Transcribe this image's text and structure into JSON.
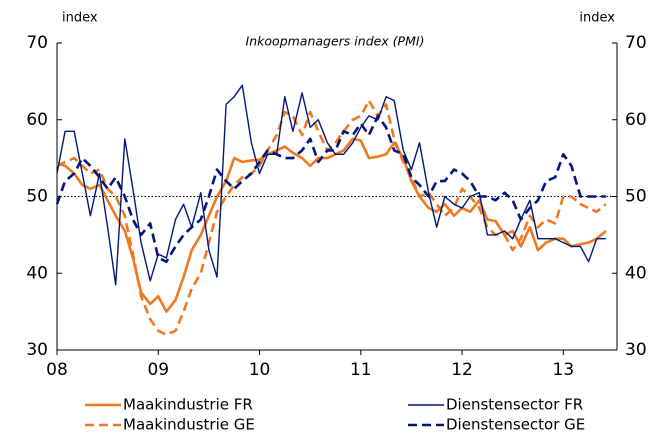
{
  "chart_data": {
    "type": "line",
    "title": "Inkoopmanagers index (PMI)",
    "ylabel": "index",
    "y2label": "index",
    "x": [
      2008.0,
      2008.08,
      2008.17,
      2008.25,
      2008.33,
      2008.42,
      2008.5,
      2008.58,
      2008.67,
      2008.75,
      2008.83,
      2008.92,
      2009.0,
      2009.08,
      2009.17,
      2009.25,
      2009.33,
      2009.42,
      2009.5,
      2009.58,
      2009.67,
      2009.75,
      2009.83,
      2009.92,
      2010.0,
      2010.08,
      2010.17,
      2010.25,
      2010.33,
      2010.42,
      2010.5,
      2010.58,
      2010.67,
      2010.75,
      2010.83,
      2010.92,
      2011.0,
      2011.08,
      2011.17,
      2011.25,
      2011.33,
      2011.42,
      2011.5,
      2011.58,
      2011.67,
      2011.75,
      2011.83,
      2011.92,
      2012.0,
      2012.08,
      2012.17,
      2012.25,
      2012.33,
      2012.42,
      2012.5,
      2012.58,
      2012.67,
      2012.75,
      2012.83,
      2012.92,
      2013.0,
      2013.08,
      2013.17,
      2013.25,
      2013.33,
      2013.42
    ],
    "series": [
      {
        "name": "Maakindustrie FR",
        "color": "#f07820",
        "style": "solid",
        "linewidth": 2.6,
        "values": [
          54.3,
          54,
          53,
          51.5,
          51,
          51.5,
          49.5,
          47.5,
          45.5,
          42,
          37.5,
          36,
          37,
          35,
          36.5,
          39.5,
          43,
          45,
          47.5,
          50,
          52,
          55,
          54.5,
          54.7,
          54.8,
          55.5,
          56,
          56.5,
          55.7,
          55,
          54,
          55,
          55,
          55.5,
          56,
          57.5,
          57.3,
          55,
          55.2,
          55.5,
          57,
          55,
          52,
          50,
          48.5,
          48,
          49,
          47.5,
          48.5,
          48,
          49.5,
          47,
          46.8,
          45,
          45.5,
          43.5,
          46,
          43,
          44,
          44.5,
          44.5,
          43.5,
          43.8,
          44,
          44.5,
          45.5
        ]
      },
      {
        "name": "Maakindustrie GE",
        "color": "#f07820",
        "style": "dashed",
        "linewidth": 2.6,
        "values": [
          54,
          54.5,
          55,
          54,
          53,
          53.5,
          51,
          50,
          47.5,
          42.5,
          37,
          34,
          32.5,
          32,
          32.5,
          35,
          38,
          40,
          44,
          48,
          50,
          51.5,
          52.5,
          53,
          54,
          56,
          58,
          61,
          60.5,
          58,
          61,
          58.5,
          56,
          57,
          58.5,
          60,
          60.5,
          62.5,
          60.5,
          62,
          57.5,
          54.5,
          52.5,
          50,
          50.5,
          49,
          47.5,
          48.5,
          51,
          50,
          48.5,
          46,
          45,
          45,
          43,
          44.5,
          47.5,
          46,
          47,
          46.5,
          50,
          50,
          49,
          48.5,
          48,
          49
        ]
      },
      {
        "name": "Dienstensector FR",
        "color": "#00167a",
        "style": "solid",
        "linewidth": 1.4,
        "values": [
          53,
          58.5,
          58.5,
          53,
          47.5,
          53,
          46,
          38.5,
          57.5,
          51,
          44,
          39,
          42.5,
          42,
          47,
          49,
          46,
          50.5,
          43,
          39.5,
          62,
          63,
          64.5,
          57,
          53,
          55.5,
          55.5,
          63,
          58.5,
          63.5,
          59,
          60,
          57,
          55.5,
          55.5,
          57,
          59,
          60.5,
          60,
          63,
          62.5,
          56,
          53.5,
          57,
          50.5,
          46,
          50,
          49,
          48.5,
          50,
          50.5,
          45,
          45,
          45.5,
          44.5,
          47,
          49.5,
          44.5,
          44.5,
          44.5,
          44,
          43.5,
          43.5,
          41.5,
          44.5,
          44.5
        ]
      },
      {
        "name": "Dienstensector GE",
        "color": "#00167a",
        "style": "dashed",
        "linewidth": 2.6,
        "values": [
          49,
          52,
          53,
          55,
          54,
          52.5,
          51,
          52.5,
          50,
          47,
          45,
          46.5,
          42,
          41.5,
          43.5,
          45,
          46,
          47,
          50,
          53.5,
          52,
          51,
          52,
          53,
          54.5,
          56,
          55.5,
          55,
          55,
          56,
          57.5,
          54.5,
          56,
          56,
          58.5,
          58,
          59.5,
          58,
          60.5,
          59,
          56,
          55.5,
          52.5,
          51.5,
          50,
          52,
          52,
          53.5,
          53,
          52,
          50,
          50,
          49.5,
          50.5,
          49.5,
          47,
          48.5,
          49.5,
          52,
          52.5,
          55.5,
          54,
          50,
          50,
          50,
          50
        ]
      }
    ],
    "xlim": [
      2008,
      2013.53
    ],
    "xticks": [
      {
        "value": 2008,
        "label": "08"
      },
      {
        "value": 2009,
        "label": "09"
      },
      {
        "value": 2010,
        "label": "10"
      },
      {
        "value": 2011,
        "label": "11"
      },
      {
        "value": 2012,
        "label": "12"
      },
      {
        "value": 2013,
        "label": "13"
      }
    ],
    "ylim": [
      30,
      70
    ],
    "yticks": [
      30,
      40,
      50,
      60,
      70
    ],
    "y2lim": [
      30,
      70
    ],
    "y2ticks": [
      30,
      40,
      50,
      60,
      70
    ],
    "hline": 50,
    "legend": "bottom"
  }
}
